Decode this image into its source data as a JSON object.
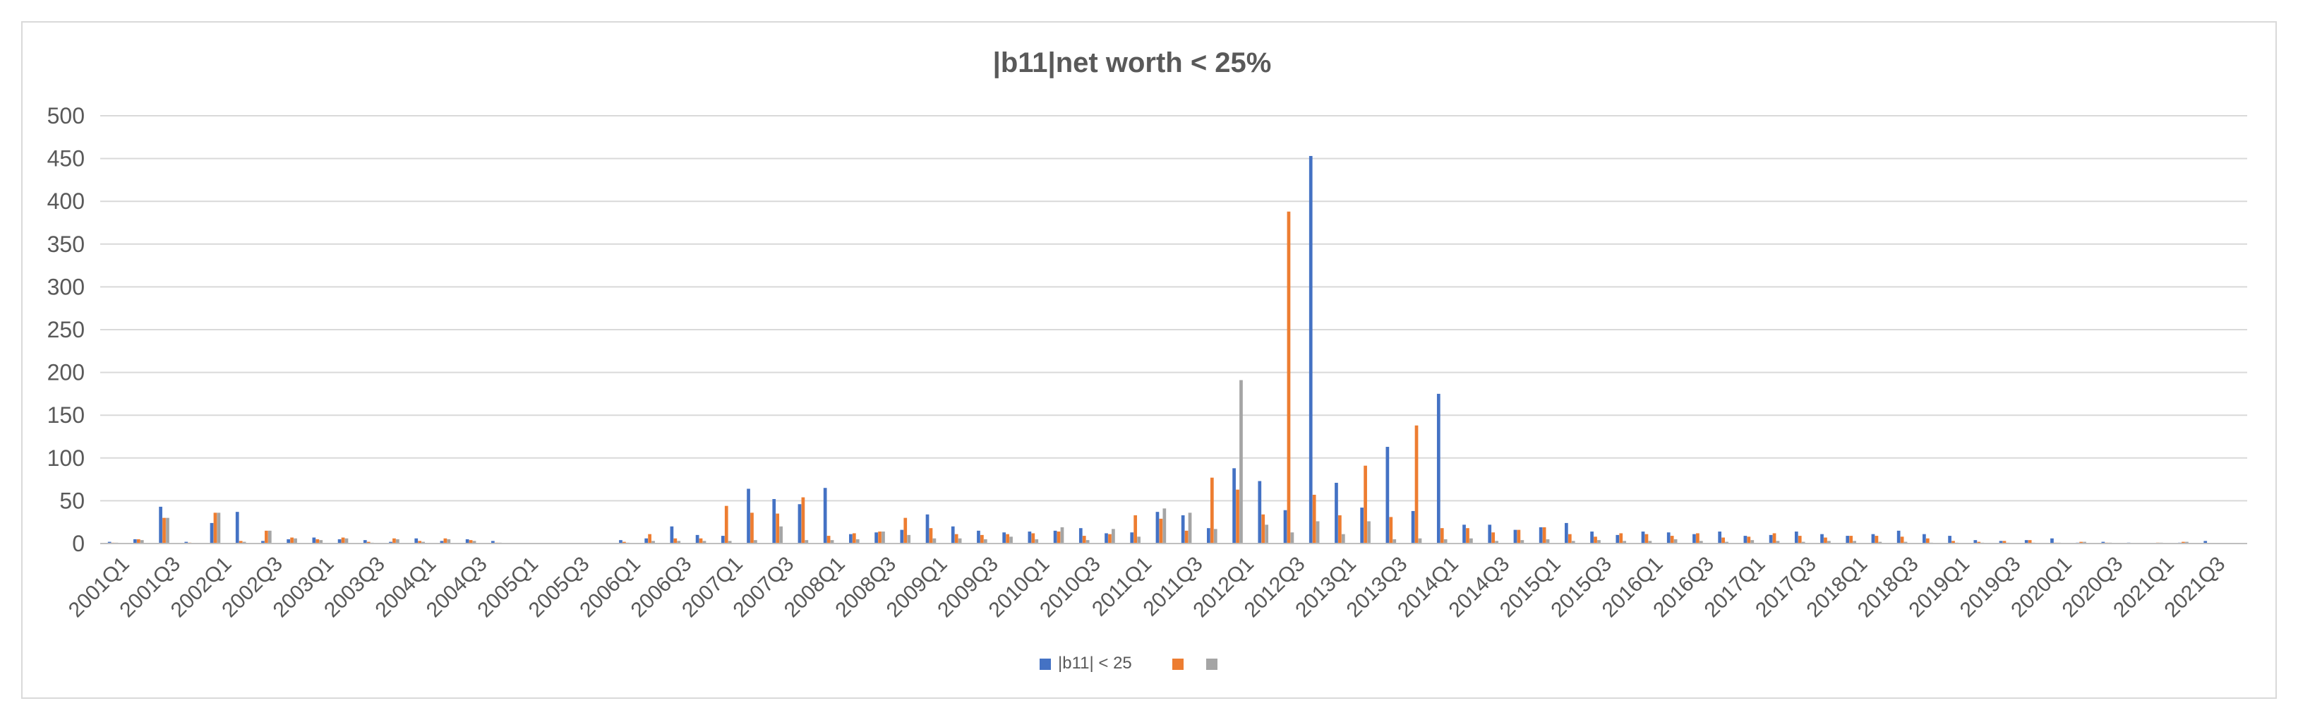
{
  "chart_data": {
    "type": "bar",
    "title": "|b11|net worth < 25%",
    "xlabel": "",
    "ylabel": "",
    "ylim": [
      0,
      500
    ],
    "yticks": [
      0,
      50,
      100,
      150,
      200,
      250,
      300,
      350,
      400,
      450,
      500
    ],
    "grid": true,
    "legend_position": "bottom",
    "colors": [
      "#4472c4",
      "#ed7d31",
      "#a5a5a5"
    ],
    "categories": [
      "2001Q1",
      "2001Q2",
      "2001Q3",
      "2001Q4",
      "2002Q1",
      "2002Q2",
      "2002Q3",
      "2002Q4",
      "2003Q1",
      "2003Q2",
      "2003Q3",
      "2003Q4",
      "2004Q1",
      "2004Q2",
      "2004Q3",
      "2004Q4",
      "2005Q1",
      "2005Q2",
      "2005Q3",
      "2005Q4",
      "2006Q1",
      "2006Q2",
      "2006Q3",
      "2006Q4",
      "2007Q1",
      "2007Q2",
      "2007Q3",
      "2007Q4",
      "2008Q1",
      "2008Q2",
      "2008Q3",
      "2008Q4",
      "2009Q1",
      "2009Q2",
      "2009Q3",
      "2009Q4",
      "2010Q1",
      "2010Q2",
      "2010Q3",
      "2010Q4",
      "2011Q1",
      "2011Q2",
      "2011Q3",
      "2011Q4",
      "2012Q1",
      "2012Q2",
      "2012Q3",
      "2012Q4",
      "2013Q1",
      "2013Q2",
      "2013Q3",
      "2013Q4",
      "2014Q1",
      "2014Q2",
      "2014Q3",
      "2014Q4",
      "2015Q1",
      "2015Q2",
      "2015Q3",
      "2015Q4",
      "2016Q1",
      "2016Q2",
      "2016Q3",
      "2016Q4",
      "2017Q1",
      "2017Q2",
      "2017Q3",
      "2017Q4",
      "2018Q1",
      "2018Q2",
      "2018Q3",
      "2018Q4",
      "2019Q1",
      "2019Q2",
      "2019Q3",
      "2019Q4",
      "2020Q1",
      "2020Q2",
      "2020Q3",
      "2020Q4",
      "2021Q1",
      "2021Q2",
      "2021Q3",
      "2021Q4"
    ],
    "tick_labels": [
      "2001Q1",
      "2001Q3",
      "2002Q1",
      "2002Q3",
      "2003Q1",
      "2003Q3",
      "2004Q1",
      "2004Q3",
      "2005Q1",
      "2005Q3",
      "2006Q1",
      "2006Q3",
      "2007Q1",
      "2007Q3",
      "2008Q1",
      "2008Q3",
      "2009Q1",
      "2009Q3",
      "2010Q1",
      "2010Q3",
      "2011Q1",
      "2011Q3",
      "2012Q1",
      "2012Q3",
      "2013Q1",
      "2013Q3",
      "2014Q1",
      "2014Q3",
      "2015Q1",
      "2015Q3",
      "2016Q1",
      "2016Q3",
      "2017Q1",
      "2017Q3",
      "2018Q1",
      "2018Q3",
      "2019Q1",
      "2019Q3",
      "2020Q1",
      "2020Q3",
      "2021Q1",
      "2021Q3"
    ],
    "series": [
      {
        "name": "|b11| < 25",
        "values": [
          2,
          5,
          43,
          2,
          24,
          37,
          3,
          5,
          7,
          5,
          4,
          2,
          6,
          3,
          5,
          3,
          0,
          0,
          0,
          0,
          4,
          6,
          20,
          10,
          9,
          64,
          52,
          46,
          65,
          11,
          13,
          16,
          34,
          20,
          15,
          13,
          14,
          15,
          18,
          12,
          13,
          37,
          33,
          18,
          88,
          73,
          39,
          453,
          71,
          42,
          113,
          38,
          175,
          22,
          22,
          16,
          19,
          24,
          14,
          10,
          14,
          13,
          11,
          14,
          9,
          10,
          14,
          11,
          9,
          11,
          15,
          11,
          9,
          4,
          3,
          4,
          6,
          1,
          2,
          1,
          0,
          1,
          3,
          0
        ],
        "color": "#4472c4"
      },
      {
        "name": "",
        "values": [
          1,
          5,
          30,
          1,
          36,
          3,
          15,
          7,
          5,
          7,
          2,
          6,
          3,
          6,
          4,
          1,
          0,
          0,
          0,
          0,
          2,
          11,
          6,
          6,
          44,
          36,
          35,
          54,
          9,
          12,
          14,
          30,
          18,
          11,
          10,
          11,
          12,
          14,
          9,
          11,
          33,
          29,
          15,
          77,
          63,
          34,
          388,
          57,
          33,
          91,
          31,
          138,
          18,
          18,
          13,
          16,
          19,
          11,
          8,
          12,
          11,
          9,
          12,
          7,
          8,
          12,
          9,
          7,
          9,
          9,
          8,
          6,
          3,
          2,
          3,
          4,
          1,
          2,
          1,
          0,
          1,
          2,
          0,
          0
        ],
        "color": "#ed7d31"
      },
      {
        "name": "",
        "values": [
          1,
          4,
          30,
          0,
          36,
          2,
          15,
          6,
          4,
          6,
          1,
          5,
          2,
          5,
          3,
          1,
          0,
          0,
          0,
          0,
          1,
          3,
          3,
          3,
          3,
          4,
          20,
          4,
          4,
          5,
          14,
          10,
          6,
          6,
          5,
          8,
          5,
          19,
          4,
          17,
          8,
          41,
          36,
          17,
          191,
          22,
          13,
          26,
          11,
          26,
          5,
          6,
          5,
          6,
          3,
          4,
          5,
          3,
          4,
          3,
          3,
          5,
          3,
          2,
          4,
          3,
          2,
          3,
          3,
          2,
          2,
          1,
          1,
          1,
          1,
          1,
          1,
          2,
          1,
          0,
          1,
          2,
          0,
          0
        ],
        "color": "#a5a5a5"
      }
    ]
  }
}
